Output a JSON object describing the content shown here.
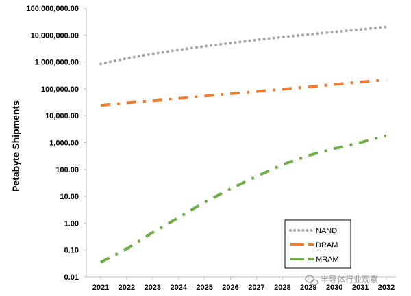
{
  "chart_data": {
    "type": "line",
    "title": "",
    "xlabel": "",
    "ylabel": "Petabyte Shipments",
    "yscale": "log",
    "ylim": [
      0.01,
      100000000
    ],
    "grid": false,
    "legend_position": "bottom-right",
    "x": [
      "2021",
      "2022",
      "2023",
      "2024",
      "2025",
      "2026",
      "2027",
      "2028",
      "2029",
      "2030",
      "2031",
      "2032"
    ],
    "yticks": [
      "0.01",
      "0.10",
      "1.00",
      "10.00",
      "100.00",
      "1,000.00",
      "10,000.00",
      "100,000.00",
      "1,000,000.00",
      "10,000,000.00",
      "100,000,000.00"
    ],
    "series": [
      {
        "name": "NAND",
        "color": "#a6a6a6",
        "dash": "dot",
        "values": [
          850000,
          1350000,
          2000000,
          2800000,
          3800000,
          5000000,
          6600000,
          8400000,
          10500000,
          13000000,
          16000000,
          20000000
        ]
      },
      {
        "name": "DRAM",
        "color": "#ed7d31",
        "dash": "dash-dot",
        "values": [
          24000,
          30000,
          36000,
          44000,
          54000,
          66000,
          80000,
          97000,
          118000,
          145000,
          178000,
          215000
        ]
      },
      {
        "name": "MRAM",
        "color": "#70ad47",
        "dash": "dash-dot",
        "values": [
          0.035,
          0.11,
          0.45,
          1.6,
          6.0,
          19,
          55,
          150,
          330,
          600,
          1000,
          1800
        ]
      }
    ]
  },
  "watermark": {
    "text": "半导体行业观察",
    "icon": "wechat-icon"
  }
}
